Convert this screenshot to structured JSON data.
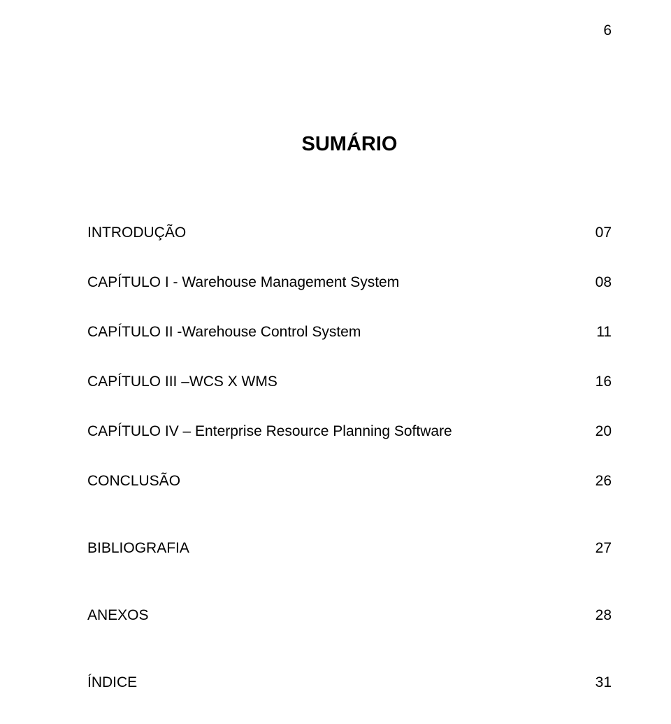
{
  "page_number": "6",
  "title": "SUMÁRIO",
  "toc": [
    {
      "label": "INTRODUÇÃO",
      "page": "07",
      "spaced": false
    },
    {
      "label": "CAPÍTULO I - Warehouse Management System",
      "page": "08",
      "spaced": false
    },
    {
      "label": "CAPÍTULO II -Warehouse Control System",
      "page": "11",
      "spaced": false
    },
    {
      "label": "CAPÍTULO III –WCS X WMS",
      "page": "16",
      "spaced": false
    },
    {
      "label": "CAPÍTULO IV – Enterprise Resource Planning Software",
      "page": "20",
      "spaced": false
    },
    {
      "label": "CONCLUSÃO",
      "page": "26",
      "spaced": true
    },
    {
      "label": "BIBLIOGRAFIA",
      "page": "27",
      "spaced": true
    },
    {
      "label": "ANEXOS",
      "page": "28",
      "spaced": true
    },
    {
      "label": "ÍNDICE",
      "page": "31",
      "spaced": false
    }
  ],
  "colors": {
    "background": "#ffffff",
    "text": "#000000"
  },
  "fonts": {
    "title_size": 29,
    "body_size": 21,
    "family": "Arial"
  }
}
